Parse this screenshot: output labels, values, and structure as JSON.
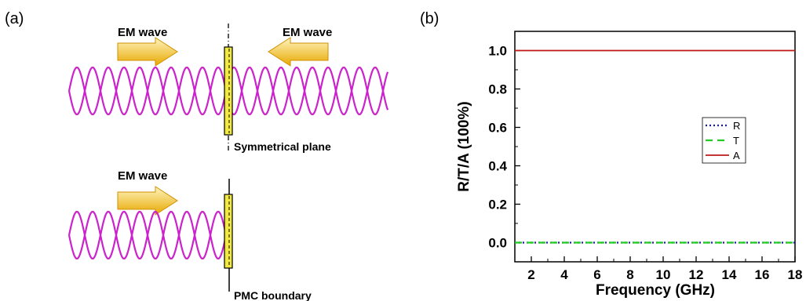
{
  "panel_a": {
    "label": "(a)",
    "top": {
      "left_wave_label": "EM wave",
      "right_wave_label": "EM wave",
      "plane_label": "Symmetrical plane"
    },
    "bottom": {
      "wave_label": "EM wave",
      "boundary_label": "PMC boundary"
    },
    "colors": {
      "sine": "#cc22cc",
      "arrow_fill_light": "#fff4c0",
      "arrow_fill_dark": "#e8a800",
      "slab_fill": "#f2ea40"
    }
  },
  "panel_b": {
    "label": "(b)"
  },
  "chart_data": {
    "type": "line",
    "xlabel": "Frequency (GHz)",
    "ylabel": "R/T/A (100%)",
    "xlim": [
      1,
      18
    ],
    "ylim": [
      -0.1,
      1.1
    ],
    "x_ticks": [
      2,
      4,
      6,
      8,
      10,
      12,
      14,
      16,
      18
    ],
    "y_ticks": [
      0.0,
      0.2,
      0.4,
      0.6,
      0.8,
      1.0
    ],
    "x_tick_labels": [
      "2",
      "4",
      "6",
      "8",
      "10",
      "12",
      "14",
      "16",
      "18"
    ],
    "y_tick_labels": [
      "0.0",
      "0.2",
      "0.4",
      "0.6",
      "0.8",
      "1.0"
    ],
    "grid": false,
    "legend_position": "center-right",
    "series": [
      {
        "name": "R",
        "x": [
          1,
          18
        ],
        "values": [
          0.0,
          0.0
        ],
        "color": "#1a1aa0",
        "style": "dotted"
      },
      {
        "name": "T",
        "x": [
          1,
          18
        ],
        "values": [
          0.0,
          0.0
        ],
        "color": "#22cc22",
        "style": "dashed"
      },
      {
        "name": "A",
        "x": [
          1,
          18
        ],
        "values": [
          1.0,
          1.0
        ],
        "color": "#c01818",
        "style": "solid"
      }
    ]
  }
}
